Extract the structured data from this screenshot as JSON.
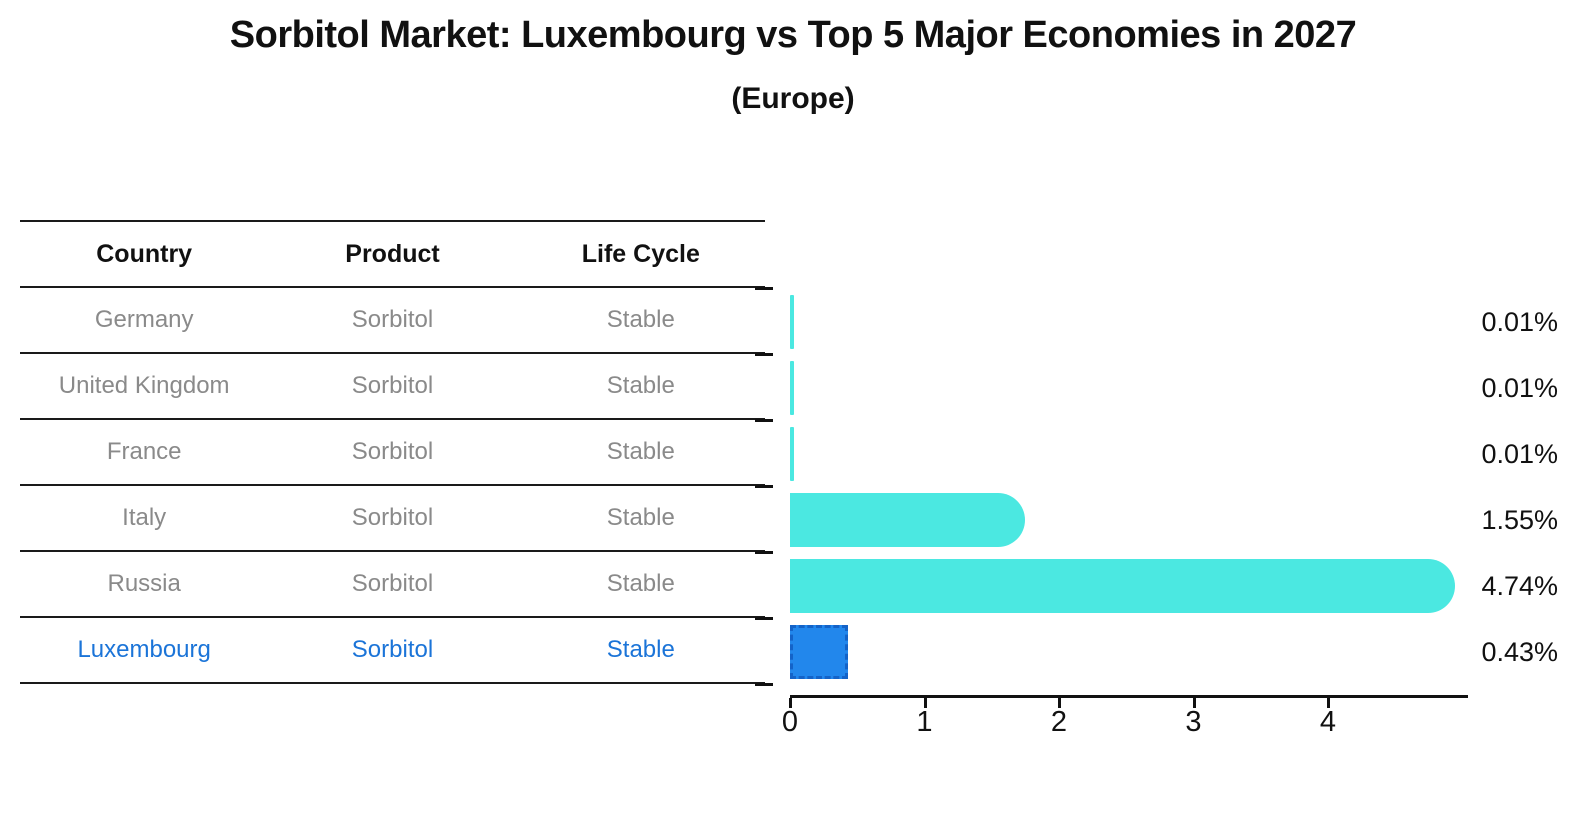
{
  "title": "Sorbitol Market: Luxembourg vs Top 5 Major Economies in 2027",
  "subtitle": "(Europe)",
  "table": {
    "headers": [
      "Country",
      "Product",
      "Life Cycle"
    ],
    "rows": [
      {
        "country": "Germany",
        "product": "Sorbitol",
        "life_cycle": "Stable",
        "highlight": false
      },
      {
        "country": "United Kingdom",
        "product": "Sorbitol",
        "life_cycle": "Stable",
        "highlight": false
      },
      {
        "country": "France",
        "product": "Sorbitol",
        "life_cycle": "Stable",
        "highlight": false
      },
      {
        "country": "Italy",
        "product": "Sorbitol",
        "life_cycle": "Stable",
        "highlight": false
      },
      {
        "country": "Russia",
        "product": "Sorbitol",
        "life_cycle": "Stable",
        "highlight": false
      },
      {
        "country": "Luxembourg",
        "product": "Sorbitol",
        "life_cycle": "Stable",
        "highlight": true
      }
    ]
  },
  "chart_data": {
    "type": "bar",
    "orientation": "horizontal",
    "title": "Sorbitol Market: Luxembourg vs Top 5 Major Economies in 2027",
    "subtitle": "(Europe)",
    "categories": [
      "Germany",
      "United Kingdom",
      "France",
      "Italy",
      "Russia",
      "Luxembourg"
    ],
    "values": [
      0.01,
      0.01,
      0.01,
      1.55,
      4.74,
      0.43
    ],
    "value_labels": [
      "0.01%",
      "0.01%",
      "0.01%",
      "1.55%",
      "4.74%",
      "0.43%"
    ],
    "unit": "percent",
    "xticks": [
      0,
      1,
      2,
      3,
      4
    ],
    "xtick_labels": [
      "0",
      "1",
      "2",
      "3",
      "4"
    ],
    "xlim": [
      0,
      5
    ],
    "grid": false,
    "legend": false,
    "highlight_index": 5,
    "colors": {
      "bar": "#4BE8E1",
      "highlight_fill": "#2287EC",
      "highlight_border": "#1463C8",
      "axis": "#111111",
      "value_label": "#111111",
      "table_text": "#8A8A8A",
      "table_header_text": "#111111",
      "highlight_text": "#1B74D8",
      "background": "#FFFFFF"
    }
  }
}
